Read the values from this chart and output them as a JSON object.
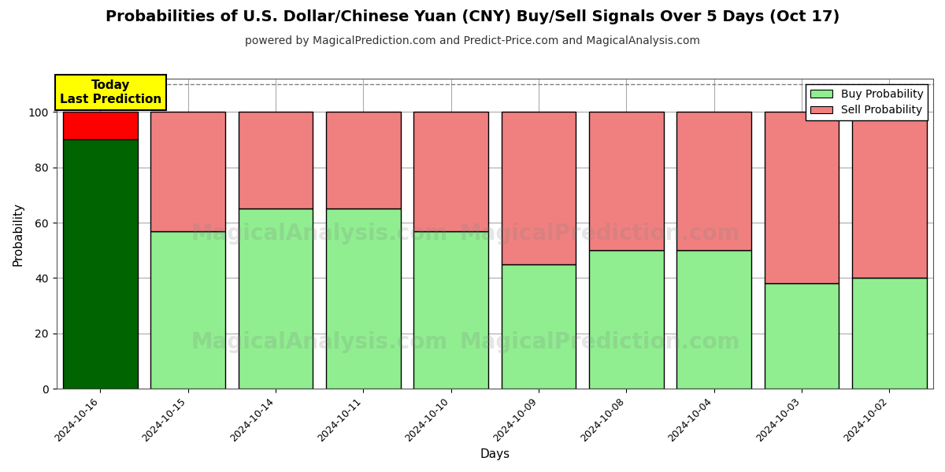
{
  "title": "Probabilities of U.S. Dollar/Chinese Yuan (CNY) Buy/Sell Signals Over 5 Days (Oct 17)",
  "subtitle": "powered by MagicalPrediction.com and Predict-Price.com and MagicalAnalysis.com",
  "xlabel": "Days",
  "ylabel": "Probability",
  "categories": [
    "2024-10-16",
    "2024-10-15",
    "2024-10-14",
    "2024-10-11",
    "2024-10-10",
    "2024-10-09",
    "2024-10-08",
    "2024-10-04",
    "2024-10-03",
    "2024-10-02"
  ],
  "buy_values": [
    90,
    57,
    65,
    65,
    57,
    45,
    50,
    50,
    38,
    40
  ],
  "sell_values": [
    10,
    43,
    35,
    35,
    43,
    55,
    50,
    50,
    62,
    60
  ],
  "buy_color_first": "#006400",
  "sell_color_first": "#ff0000",
  "buy_color": "#90EE90",
  "sell_color": "#F08080",
  "bar_edge_color": "#000000",
  "bar_linewidth": 1.0,
  "bar_width": 0.85,
  "ylim": [
    0,
    112
  ],
  "yticks": [
    0,
    20,
    40,
    60,
    80,
    100
  ],
  "grid_color": "#aaaaaa",
  "grid_linewidth": 0.8,
  "dashed_line_y": 110,
  "annotation_text": "Today\nLast Prediction",
  "annotation_bg": "#ffff00",
  "figsize": [
    12,
    6
  ],
  "dpi": 100,
  "title_fontsize": 14,
  "subtitle_fontsize": 10,
  "legend_fontsize": 10,
  "axis_label_fontsize": 11,
  "tick_fontsize": 9
}
